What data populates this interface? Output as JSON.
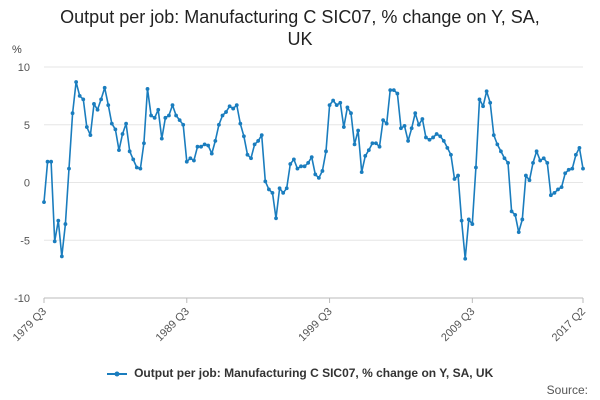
{
  "title_line1": "Output per job: Manufacturing C SIC07, % change on Y, SA,",
  "title_line2": "UK",
  "units": "%",
  "source": "Source:",
  "colors": {
    "series": "#1a7dbe",
    "grid": "#e6e6e6",
    "axis": "#bbbbbb",
    "tick_text": "#555555"
  },
  "chart_data": {
    "type": "line",
    "ylim": [
      -10,
      10
    ],
    "yticks": [
      "10",
      "5",
      "0",
      "-5",
      "-10"
    ],
    "ytick_values": [
      10,
      5,
      0,
      -5,
      -10
    ],
    "xlabels": [
      "1979 Q3",
      "1989 Q3",
      "1999 Q3",
      "2009 Q3",
      "2017 Q2"
    ],
    "xlabel_index": [
      0,
      40,
      80,
      120,
      151
    ],
    "legend_position": "bottom",
    "grid": true,
    "series": [
      {
        "name": "Output per job: Manufacturing C SIC07, % change on Y, SA, UK",
        "values": [
          -1.7,
          1.8,
          1.8,
          -5.1,
          -3.3,
          -6.4,
          -3.6,
          1.2,
          6.0,
          8.7,
          7.5,
          7.2,
          4.8,
          4.1,
          6.8,
          6.3,
          7.2,
          8.2,
          6.7,
          5.1,
          4.6,
          2.8,
          4.2,
          5.1,
          2.7,
          2.0,
          1.3,
          1.2,
          3.4,
          8.1,
          5.8,
          5.6,
          6.3,
          3.8,
          5.6,
          5.8,
          6.7,
          5.8,
          5.4,
          5.0,
          1.8,
          2.1,
          1.9,
          3.1,
          3.1,
          3.3,
          3.2,
          2.5,
          3.6,
          5.0,
          5.8,
          6.1,
          6.6,
          6.4,
          6.7,
          5.1,
          4.0,
          2.4,
          2.1,
          3.3,
          3.6,
          4.1,
          0.1,
          -0.6,
          -0.9,
          -3.1,
          -0.5,
          -0.9,
          -0.5,
          1.6,
          2.0,
          1.2,
          1.4,
          1.4,
          1.7,
          2.2,
          0.7,
          0.4,
          1.0,
          2.7,
          6.7,
          7.1,
          6.7,
          6.9,
          4.8,
          6.5,
          6.0,
          3.3,
          4.5,
          0.9,
          2.3,
          2.8,
          3.4,
          3.4,
          3.1,
          5.4,
          5.1,
          8.0,
          8.0,
          7.7,
          4.7,
          4.9,
          3.6,
          4.7,
          6.0,
          5.0,
          5.5,
          3.9,
          3.7,
          3.9,
          4.2,
          4.0,
          3.6,
          3.0,
          2.4,
          0.3,
          0.6,
          -3.3,
          -6.6,
          -3.2,
          -3.6,
          1.3,
          7.2,
          6.6,
          7.9,
          6.9,
          4.1,
          3.3,
          2.7,
          2.1,
          1.7,
          -2.5,
          -2.8,
          -4.3,
          -3.2,
          0.6,
          0.2,
          1.7,
          2.7,
          1.9,
          2.1,
          1.7,
          -1.1,
          -0.9,
          -0.6,
          -0.4,
          0.8,
          1.1,
          1.2,
          2.4,
          3.0,
          1.2
        ]
      }
    ]
  }
}
